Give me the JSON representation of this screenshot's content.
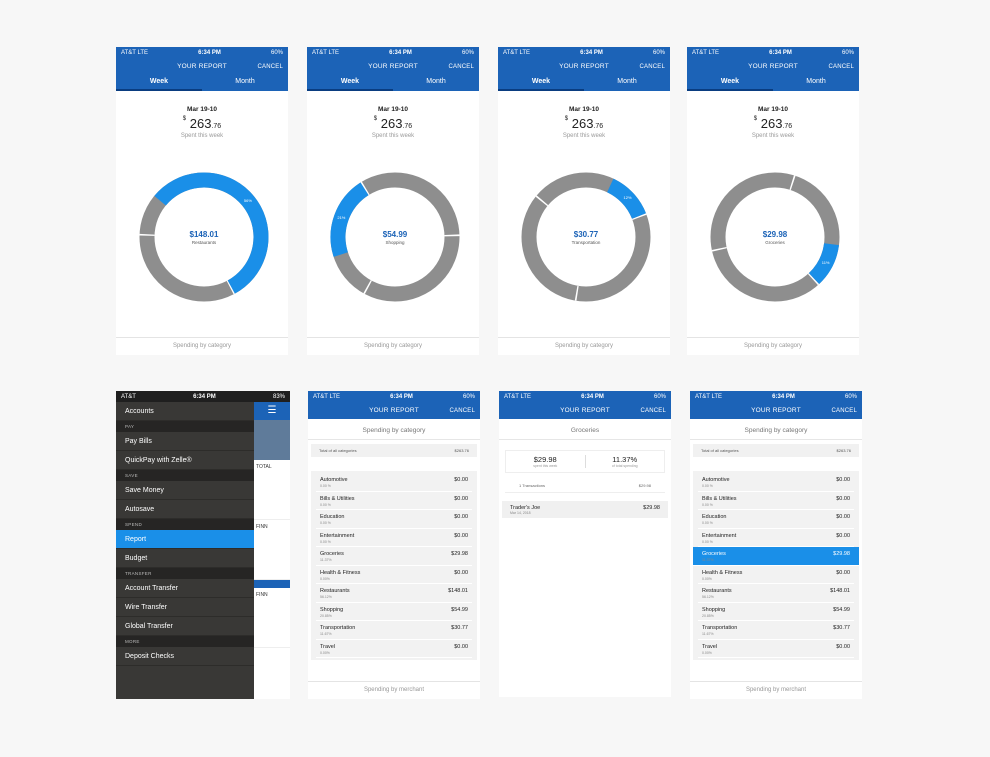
{
  "colors": {
    "blue": "#1c63b7",
    "accent": "#1a8fe8",
    "ring_grey": "#8e8e8e"
  },
  "status": {
    "carrier": "AT&T  LTE",
    "time": "6:34 PM",
    "battery": "60%",
    "menu_carrier": "AT&T",
    "menu_battery": "83%"
  },
  "header": {
    "title": "YOUR REPORT",
    "cancel": "CANCEL",
    "tab_week": "Week",
    "tab_month": "Month"
  },
  "summary": {
    "date": "Mar 19-10",
    "currency": "$",
    "dollars": "263",
    "cents": ".76",
    "spent_label": "Spent this week"
  },
  "footer": {
    "by_category": "Spending by category",
    "by_merchant": "Spending by merchant"
  },
  "donuts": [
    {
      "value": "$148.01",
      "category": "Restaurants",
      "highlight_fraction": 0.56,
      "pct_label": "56%"
    },
    {
      "value": "$54.99",
      "category": "Shopping",
      "highlight_fraction": 0.21,
      "pct_label": "21%"
    },
    {
      "value": "$30.77",
      "category": "Transportation",
      "highlight_fraction": 0.12,
      "pct_label": "12%"
    },
    {
      "value": "$29.98",
      "category": "Groceries",
      "highlight_fraction": 0.11,
      "pct_label": "11%"
    }
  ],
  "menu": {
    "items": [
      {
        "type": "item",
        "label": "Accounts"
      },
      {
        "type": "section",
        "label": "PAY"
      },
      {
        "type": "item",
        "label": "Pay Bills"
      },
      {
        "type": "item",
        "label": "QuickPay with Zelle®"
      },
      {
        "type": "section",
        "label": "SAVE"
      },
      {
        "type": "item",
        "label": "Save Money"
      },
      {
        "type": "item",
        "label": "Autosave"
      },
      {
        "type": "section",
        "label": "SPEND"
      },
      {
        "type": "item",
        "label": "Report",
        "active": true
      },
      {
        "type": "item",
        "label": "Budget"
      },
      {
        "type": "section",
        "label": "TRANSFER"
      },
      {
        "type": "item",
        "label": "Account Transfer"
      },
      {
        "type": "item",
        "label": "Wire Transfer"
      },
      {
        "type": "item",
        "label": "Global Transfer"
      },
      {
        "type": "section",
        "label": "MORE"
      },
      {
        "type": "item",
        "label": "Deposit Checks"
      }
    ],
    "side_total": "TOTAL",
    "side_finn_1": "FINN",
    "side_finn_2": "FINN"
  },
  "categories": {
    "total_label": "Total of all categories",
    "total_value": "$263.76",
    "rows": [
      {
        "name": "Automotive",
        "pct": "0.00 %",
        "amount": "$0.00"
      },
      {
        "name": "Bills & Utilities",
        "pct": "0.00 %",
        "amount": "$0.00"
      },
      {
        "name": "Education",
        "pct": "0.00 %",
        "amount": "$0.00"
      },
      {
        "name": "Entertainment",
        "pct": "0.00 %",
        "amount": "$0.00"
      },
      {
        "name": "Groceries",
        "pct": "11.37%",
        "amount": "$29.98"
      },
      {
        "name": "Health & Fitness",
        "pct": "0.00%",
        "amount": "$0.00"
      },
      {
        "name": "Restaurants",
        "pct": "56.12%",
        "amount": "$148.01"
      },
      {
        "name": "Shopping",
        "pct": "20.85%",
        "amount": "$54.99"
      },
      {
        "name": "Transportation",
        "pct": "11.67%",
        "amount": "$30.77"
      },
      {
        "name": "Travel",
        "pct": "0.00%",
        "amount": "$0.00"
      }
    ]
  },
  "transactions": {
    "title": "Groceries",
    "spent_value": "$29.98",
    "spent_label": "spent this week",
    "share_value": "11.37%",
    "share_label": "of total spending",
    "count_label": "1 Transactions",
    "count_amount": "$29.98",
    "rows": [
      {
        "name": "Trader's Joe",
        "date": "Mar 14, 2018",
        "amount": "$29.98"
      }
    ]
  }
}
